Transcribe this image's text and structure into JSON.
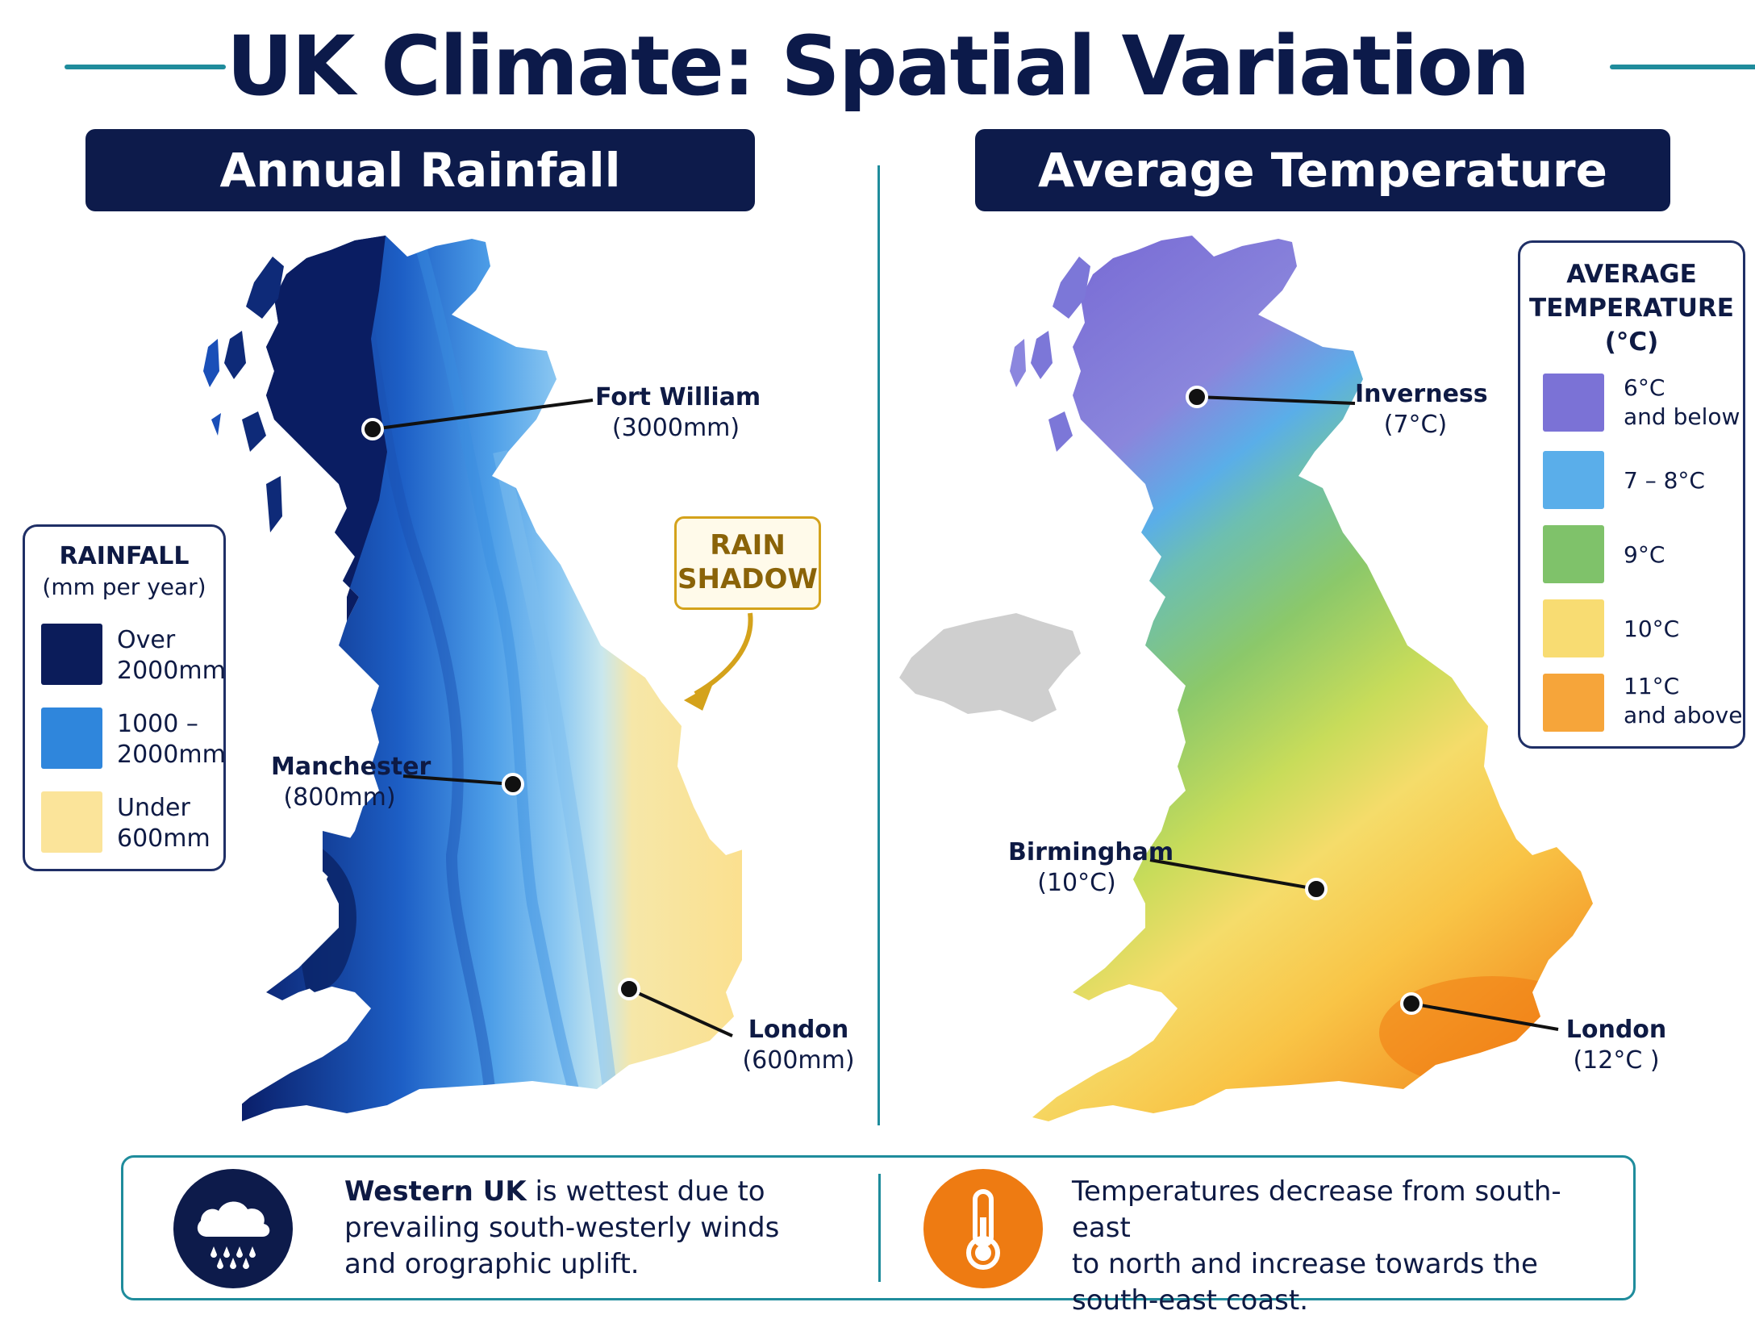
{
  "title": "UK Climate: Spatial Variation",
  "rainfall_panel": {
    "heading": "Annual Rainfall",
    "legend": {
      "title_line1": "RAINFALL",
      "title_line2": "(mm per year)",
      "items": [
        {
          "line1": "Over",
          "line2": "2000mm",
          "color": "#0b1c5a"
        },
        {
          "line1": "1000 –",
          "line2": "2000mm",
          "color": "#2f86dc"
        },
        {
          "line1": "Under",
          "line2": "600mm",
          "color": "#fbe49a"
        }
      ]
    },
    "places": [
      {
        "name": "Fort William",
        "value": "(3000mm)"
      },
      {
        "name": "Manchester",
        "value": "(800mm)"
      },
      {
        "name": "London",
        "value": "(600mm)"
      }
    ],
    "rain_shadow": {
      "line1": "RAIN",
      "line2": "SHADOW"
    }
  },
  "temperature_panel": {
    "heading": "Average Temperature",
    "legend": {
      "title_line1": "AVERAGE",
      "title_line2": "TEMPERATURE",
      "title_line3": "(°C)",
      "items": [
        {
          "line1": "6°C",
          "line2": "and below",
          "color": "#7b72d6"
        },
        {
          "line1": "7 – 8°C",
          "line2": "",
          "color": "#5aaeea"
        },
        {
          "line1": "9°C",
          "line2": "",
          "color": "#7fc26a"
        },
        {
          "line1": "10°C",
          "line2": "",
          "color": "#f8dc72"
        },
        {
          "line1": "11°C",
          "line2": "and above",
          "color": "#f6a53a"
        }
      ]
    },
    "places": [
      {
        "name": "Inverness",
        "value": "(7°C)"
      },
      {
        "name": "Birmingham",
        "value": "(10°C)"
      },
      {
        "name": "London",
        "value": "(12°C )"
      }
    ]
  },
  "footer": {
    "left_icon": "rain-cloud-icon",
    "left_bold": "Western UK",
    "left_rest_line1": " is wettest due to",
    "left_line2": "prevailing south-westerly winds",
    "left_line3": "and orographic uplift.",
    "right_icon": "thermometer-icon",
    "right_line1": "Temperatures decrease from south-east",
    "right_line2": "to north and increase towards the",
    "right_line3": "south-east coast."
  },
  "colors": {
    "navy": "#0d1b4b",
    "teal": "#1f8c9c",
    "icon_orange": "#ee7b12",
    "rain_shadow_gold": "#d4a21b",
    "northern_ireland_grey": "#cfcfcf"
  }
}
